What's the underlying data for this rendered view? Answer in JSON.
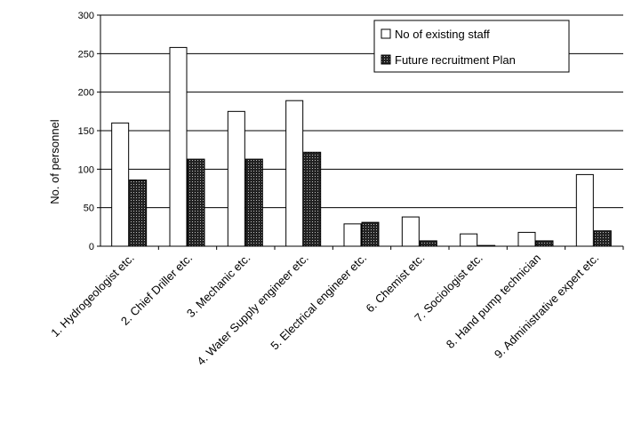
{
  "chart_data": {
    "type": "bar",
    "ylabel": "No. of personnel",
    "ylim": [
      0,
      300
    ],
    "yticks": [
      0,
      50,
      100,
      150,
      200,
      250,
      300
    ],
    "grid": true,
    "legend_position": "top-right",
    "categories": [
      "1. Hydrogeologist etc.",
      "2. Chief Driller etc.",
      "3. Mechanic etc.",
      "4. Water Supply engineer etc.",
      "5. Electrical engineer etc.",
      "6. Chemist etc.",
      "7. Sociologist etc.",
      "8. Hand pump technician",
      "9. Administrative expert etc."
    ],
    "series": [
      {
        "name": "No of existing staff",
        "fill": "#ffffff",
        "values": [
          160,
          258,
          175,
          189,
          29,
          38,
          16,
          18,
          93
        ]
      },
      {
        "name": "Future recruitment Plan",
        "fill": "#1a1a1a",
        "values": [
          86,
          113,
          113,
          122,
          31,
          7,
          1,
          7,
          20
        ]
      }
    ]
  }
}
